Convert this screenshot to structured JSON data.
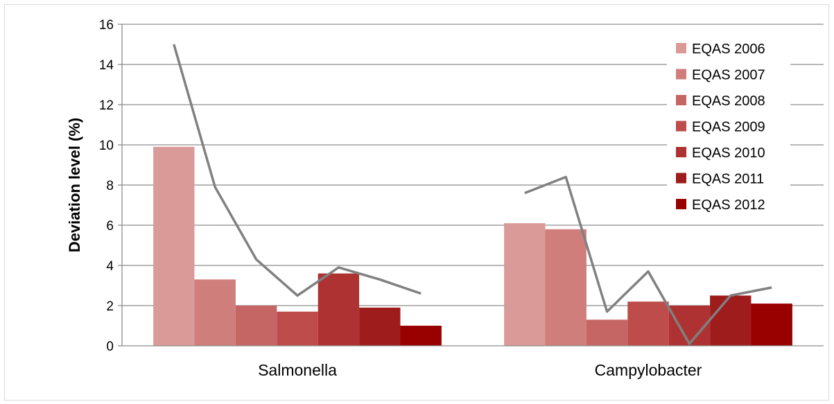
{
  "chart_data": {
    "type": "bar",
    "ylabel": "Deviation level (%)",
    "ylim": [
      0,
      16
    ],
    "y_ticks": [
      "0",
      "2",
      "4",
      "6",
      "8",
      "10",
      "12",
      "14",
      "16"
    ],
    "grid": true,
    "legend_position": "right",
    "categories": [
      "Salmonella",
      "Campylobacter"
    ],
    "series": [
      {
        "name": "EQAS 2006",
        "color": "#d99a98",
        "values": [
          9.9,
          6.1
        ]
      },
      {
        "name": "EQAS 2007",
        "color": "#cf7e7c",
        "values": [
          3.3,
          5.8
        ]
      },
      {
        "name": "EQAS 2008",
        "color": "#c66664",
        "values": [
          2.0,
          1.3
        ]
      },
      {
        "name": "EQAS 2009",
        "color": "#bd4c4a",
        "values": [
          1.7,
          2.2
        ]
      },
      {
        "name": "EQAS 2010",
        "color": "#ae3231",
        "values": [
          3.6,
          2.0
        ]
      },
      {
        "name": "EQAS 2011",
        "color": "#9f1c1c",
        "values": [
          1.9,
          2.5
        ]
      },
      {
        "name": "EQAS 2012",
        "color": "#990000",
        "values": [
          1.0,
          2.1
        ]
      }
    ],
    "overlay_lines": [
      {
        "color": "#808080",
        "values": [
          15.0,
          7.9,
          4.3,
          2.5,
          3.9,
          3.3,
          2.6
        ]
      },
      {
        "color": "#808080",
        "values": [
          7.6,
          8.4,
          1.7,
          3.7,
          0.1,
          2.5,
          2.9
        ]
      }
    ]
  }
}
